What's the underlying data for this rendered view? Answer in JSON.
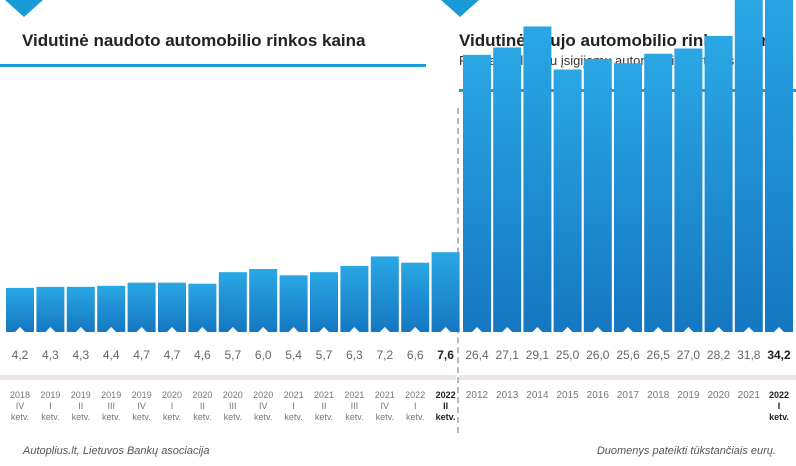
{
  "left_title": "Vidutinė naudoto automobilio rinkos kaina",
  "right_title": "Vidutinė naujo automobilio rinkos kaina",
  "right_subtitle": "Remiantis lizingu įsigijamų automobilių vertėmis",
  "footer_left": "Autoplius.lt, Lietuvos Bankų asociacija",
  "footer_right": "Duomenys pateikti tūkstančiais eurų.",
  "colors": {
    "accent": "#1a9ad6",
    "bar_top": "#2aa7e4",
    "bar_bottom": "#1577c1"
  },
  "chart_data": [
    {
      "type": "bar",
      "title": "Vidutinė naudoto automobilio rinkos kaina",
      "unit": "tūkst. eurų",
      "categories": [
        [
          "2018",
          "IV",
          "ketv."
        ],
        [
          "2019",
          "I",
          "ketv."
        ],
        [
          "2019",
          "II",
          "ketv."
        ],
        [
          "2019",
          "III",
          "ketv."
        ],
        [
          "2019",
          "IV",
          "ketv."
        ],
        [
          "2020",
          "I",
          "ketv."
        ],
        [
          "2020",
          "II",
          "ketv."
        ],
        [
          "2020",
          "III",
          "ketv."
        ],
        [
          "2020",
          "IV",
          "ketv."
        ],
        [
          "2021",
          "I",
          "ketv."
        ],
        [
          "2021",
          "II",
          "ketv."
        ],
        [
          "2021",
          "III",
          "ketv."
        ],
        [
          "2021",
          "IV",
          "ketv."
        ],
        [
          "2022",
          "I",
          "ketv."
        ],
        [
          "2022",
          "II",
          "ketv."
        ]
      ],
      "values": [
        4.2,
        4.3,
        4.3,
        4.4,
        4.7,
        4.7,
        4.6,
        5.7,
        6.0,
        5.4,
        5.7,
        6.3,
        7.2,
        6.6,
        7.6
      ],
      "labels": [
        "4,2",
        "4,3",
        "4,3",
        "4,4",
        "4,7",
        "4,7",
        "4,6",
        "5,7",
        "6,0",
        "5,4",
        "5,7",
        "6,3",
        "7,2",
        "6,6",
        "7,6"
      ],
      "highlight_last": true,
      "ylim": [
        0,
        34.2
      ]
    },
    {
      "type": "bar",
      "title": "Vidutinė naujo automobilio rinkos kaina",
      "subtitle": "Remiantis lizingu įsigijamų automobilių vertėmis",
      "unit": "tūkst. eurų",
      "categories": [
        [
          "2012"
        ],
        [
          "2013"
        ],
        [
          "2014"
        ],
        [
          "2015"
        ],
        [
          "2016"
        ],
        [
          "2017"
        ],
        [
          "2018"
        ],
        [
          "2019"
        ],
        [
          "2020"
        ],
        [
          "2021"
        ],
        [
          "2022",
          "I",
          "ketv."
        ]
      ],
      "values": [
        26.4,
        27.1,
        29.1,
        25.0,
        26.0,
        25.6,
        26.5,
        27.0,
        28.2,
        31.8,
        34.2
      ],
      "labels": [
        "26,4",
        "27,1",
        "29,1",
        "25,0",
        "26,0",
        "25,6",
        "26,5",
        "27,0",
        "28,2",
        "31,8",
        "34,2"
      ],
      "highlight_last": true,
      "ylim": [
        0,
        34.2
      ]
    }
  ]
}
